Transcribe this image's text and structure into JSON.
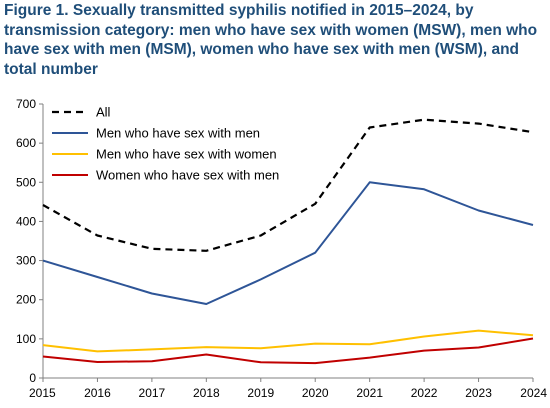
{
  "chart_data": {
    "type": "line",
    "title": "Figure 1. Sexually transmitted syphilis notified in 2015–2024, by transmission category: men who have sex with women (MSW), men who have sex with men (MSM), women who have sex with men (WSM), and total number",
    "xlabel": "",
    "ylabel": "",
    "x": [
      "2015",
      "2016",
      "2017",
      "2018",
      "2019",
      "2020",
      "2021",
      "2022",
      "2023",
      "2024"
    ],
    "yticks": [
      "0",
      "100",
      "200",
      "300",
      "400",
      "500",
      "600",
      "700"
    ],
    "ylim": [
      0,
      700
    ],
    "grid": false,
    "legend_position": "top-left",
    "series": [
      {
        "name": "All",
        "color": "#000000",
        "dash": true,
        "values": [
          442,
          364,
          330,
          325,
          364,
          445,
          640,
          660,
          650,
          628
        ]
      },
      {
        "name": "Men who have sex with men",
        "color": "#2e5597",
        "dash": false,
        "values": [
          300,
          258,
          216,
          189,
          252,
          320,
          500,
          482,
          428,
          391
        ]
      },
      {
        "name": "Men who have sex with women",
        "color": "#ffc000",
        "dash": false,
        "values": [
          84,
          68,
          73,
          79,
          76,
          88,
          86,
          106,
          121,
          109
        ]
      },
      {
        "name": "Women who have sex with men",
        "color": "#c00000",
        "dash": false,
        "values": [
          55,
          41,
          43,
          60,
          40,
          38,
          52,
          70,
          78,
          101
        ]
      }
    ]
  }
}
